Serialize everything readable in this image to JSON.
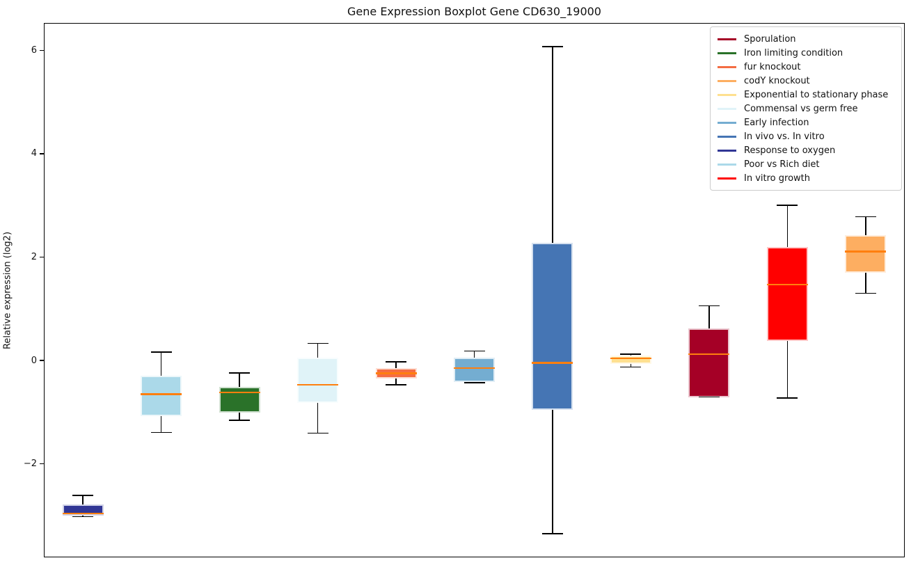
{
  "title": "Gene Expression Boxplot Gene CD630_19000",
  "ylabel": "Relative expression (log2)",
  "chart_data": {
    "type": "boxplot",
    "title": "Gene Expression Boxplot Gene CD630_19000",
    "ylabel": "Relative expression (log2)",
    "xlabel": "",
    "ylim": [
      -3.81,
      6.53
    ],
    "yticks": [
      6,
      4,
      2,
      0,
      -2
    ],
    "ytick_labels": [
      "6",
      "4",
      "2",
      "0",
      "−2"
    ],
    "grid": false,
    "legend_position": "upper right",
    "median_color": "#ff7f0e",
    "whisker_color": "#000000",
    "groups": [
      {
        "label": "Response to oxygen",
        "color": "#313695",
        "whisker_low": -3.02,
        "q1": -3.0,
        "median": -2.96,
        "q3": -2.79,
        "whisker_high": -2.61
      },
      {
        "label": "Poor vs Rich diet",
        "color": "#ABD9E9",
        "whisker_low": -1.39,
        "q1": -1.08,
        "median": -0.65,
        "q3": -0.29,
        "whisker_high": 0.16
      },
      {
        "label": "Iron limiting condition",
        "color": "#2A7229",
        "whisker_low": -1.16,
        "q1": -1.01,
        "median": -0.62,
        "q3": -0.51,
        "whisker_high": -0.24
      },
      {
        "label": "Commensal vs germ free",
        "color": "#E0F3F8",
        "whisker_low": -1.41,
        "q1": -0.82,
        "median": -0.47,
        "q3": 0.06,
        "whisker_high": 0.33
      },
      {
        "label": "fur knockout",
        "color": "#F46D43",
        "whisker_low": -0.47,
        "q1": -0.35,
        "median": -0.25,
        "q3": -0.15,
        "whisker_high": -0.03
      },
      {
        "label": "Early infection",
        "color": "#74ADD1",
        "whisker_low": -0.43,
        "q1": -0.42,
        "median": -0.15,
        "q3": 0.05,
        "whisker_high": 0.18
      },
      {
        "label": "In vivo vs. In vitro",
        "color": "#4575B4",
        "whisker_low": -3.35,
        "q1": -0.96,
        "median": -0.05,
        "q3": 2.28,
        "whisker_high": 6.07
      },
      {
        "label": "Exponential to stationary phase",
        "color": "#FEE090",
        "whisker_low": -0.13,
        "q1": -0.07,
        "median": 0.04,
        "q3": 0.09,
        "whisker_high": 0.12
      },
      {
        "label": "Sporulation",
        "color": "#A50026",
        "whisker_low": -0.71,
        "q1": -0.71,
        "median": 0.12,
        "q3": 0.62,
        "whisker_high": 1.06
      },
      {
        "label": "In vitro growth",
        "color": "#FF0000",
        "whisker_low": -0.73,
        "q1": 0.38,
        "median": 1.47,
        "q3": 2.19,
        "whisker_high": 3.0
      },
      {
        "label": "codY knockout",
        "color": "#FDAE61",
        "whisker_low": 1.3,
        "q1": 1.7,
        "median": 2.11,
        "q3": 2.43,
        "whisker_high": 2.78
      }
    ],
    "legend": [
      {
        "label": "Sporulation",
        "color": "#A50026"
      },
      {
        "label": "Iron limiting condition",
        "color": "#2A7229"
      },
      {
        "label": "fur knockout",
        "color": "#F46D43"
      },
      {
        "label": "codY knockout",
        "color": "#FDAE61"
      },
      {
        "label": "Exponential to stationary phase",
        "color": "#FEE090"
      },
      {
        "label": "Commensal vs germ free",
        "color": "#E0F3F8"
      },
      {
        "label": "Early infection",
        "color": "#74ADD1"
      },
      {
        "label": "In vivo vs. In vitro",
        "color": "#4575B4"
      },
      {
        "label": "Response to oxygen",
        "color": "#313695"
      },
      {
        "label": "Poor vs Rich diet",
        "color": "#ABD9E9"
      },
      {
        "label": "In vitro growth",
        "color": "#FF0000"
      }
    ]
  }
}
